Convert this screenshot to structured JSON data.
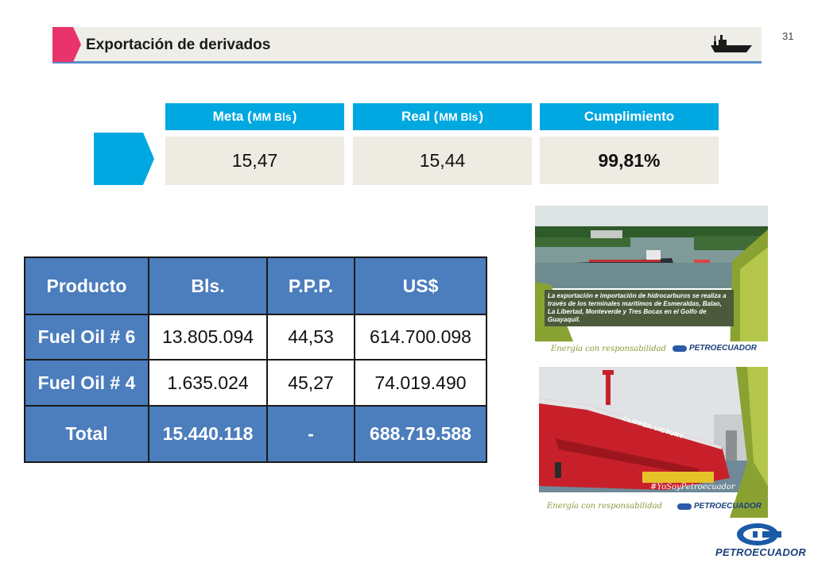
{
  "page_number": "31",
  "header": {
    "title": "Exportación de derivados",
    "icon": "ship-icon"
  },
  "kpis": {
    "meta": {
      "label_prefix": "Meta (",
      "label_unit": "MM Bls",
      "label_suffix": ")",
      "value": "15,47"
    },
    "real": {
      "label_prefix": "Real (",
      "label_unit": "MM Bls",
      "label_suffix": ")",
      "value": "15,44"
    },
    "cumplimiento": {
      "label": "Cumplimiento",
      "value": "99,81%"
    }
  },
  "table": {
    "headers": [
      "Producto",
      "Bls.",
      "P.P.P.",
      "US$"
    ],
    "rows": [
      {
        "producto": "Fuel Oil # 6",
        "bls": "13.805.094",
        "ppp": "44,53",
        "usd": "614.700.098"
      },
      {
        "producto": "Fuel Oil # 4",
        "bls": "1.635.024",
        "ppp": "45,27",
        "usd": "74.019.490"
      }
    ],
    "total": {
      "producto": "Total",
      "bls": "15.440.118",
      "ppp": "-",
      "usd": "688.719.588"
    }
  },
  "cards": {
    "card1": {
      "overlay_text": "La exportación e importación de hidrocarburos se realiza a través de los terminales marítimos de Esmeraldas, Balao, La Libertad, Monteverde y Tres Bocas en el Golfo de Guayaquil.",
      "slogan": "Energía con responsabilidad",
      "logo": "PETROECUADOR"
    },
    "card2": {
      "ship_name": "CLIPPER VICTORY",
      "hashtag": "#YoSoyPetroecuador",
      "slogan": "Energía con responsabilidad",
      "logo": "PETROECUADOR"
    }
  },
  "footer_logo": "PETROECUADOR",
  "colors": {
    "accent_blue": "#00a8e1",
    "table_blue": "#4c7dbd",
    "header_pink": "#e8336b",
    "olive": "#8a9a3a"
  }
}
